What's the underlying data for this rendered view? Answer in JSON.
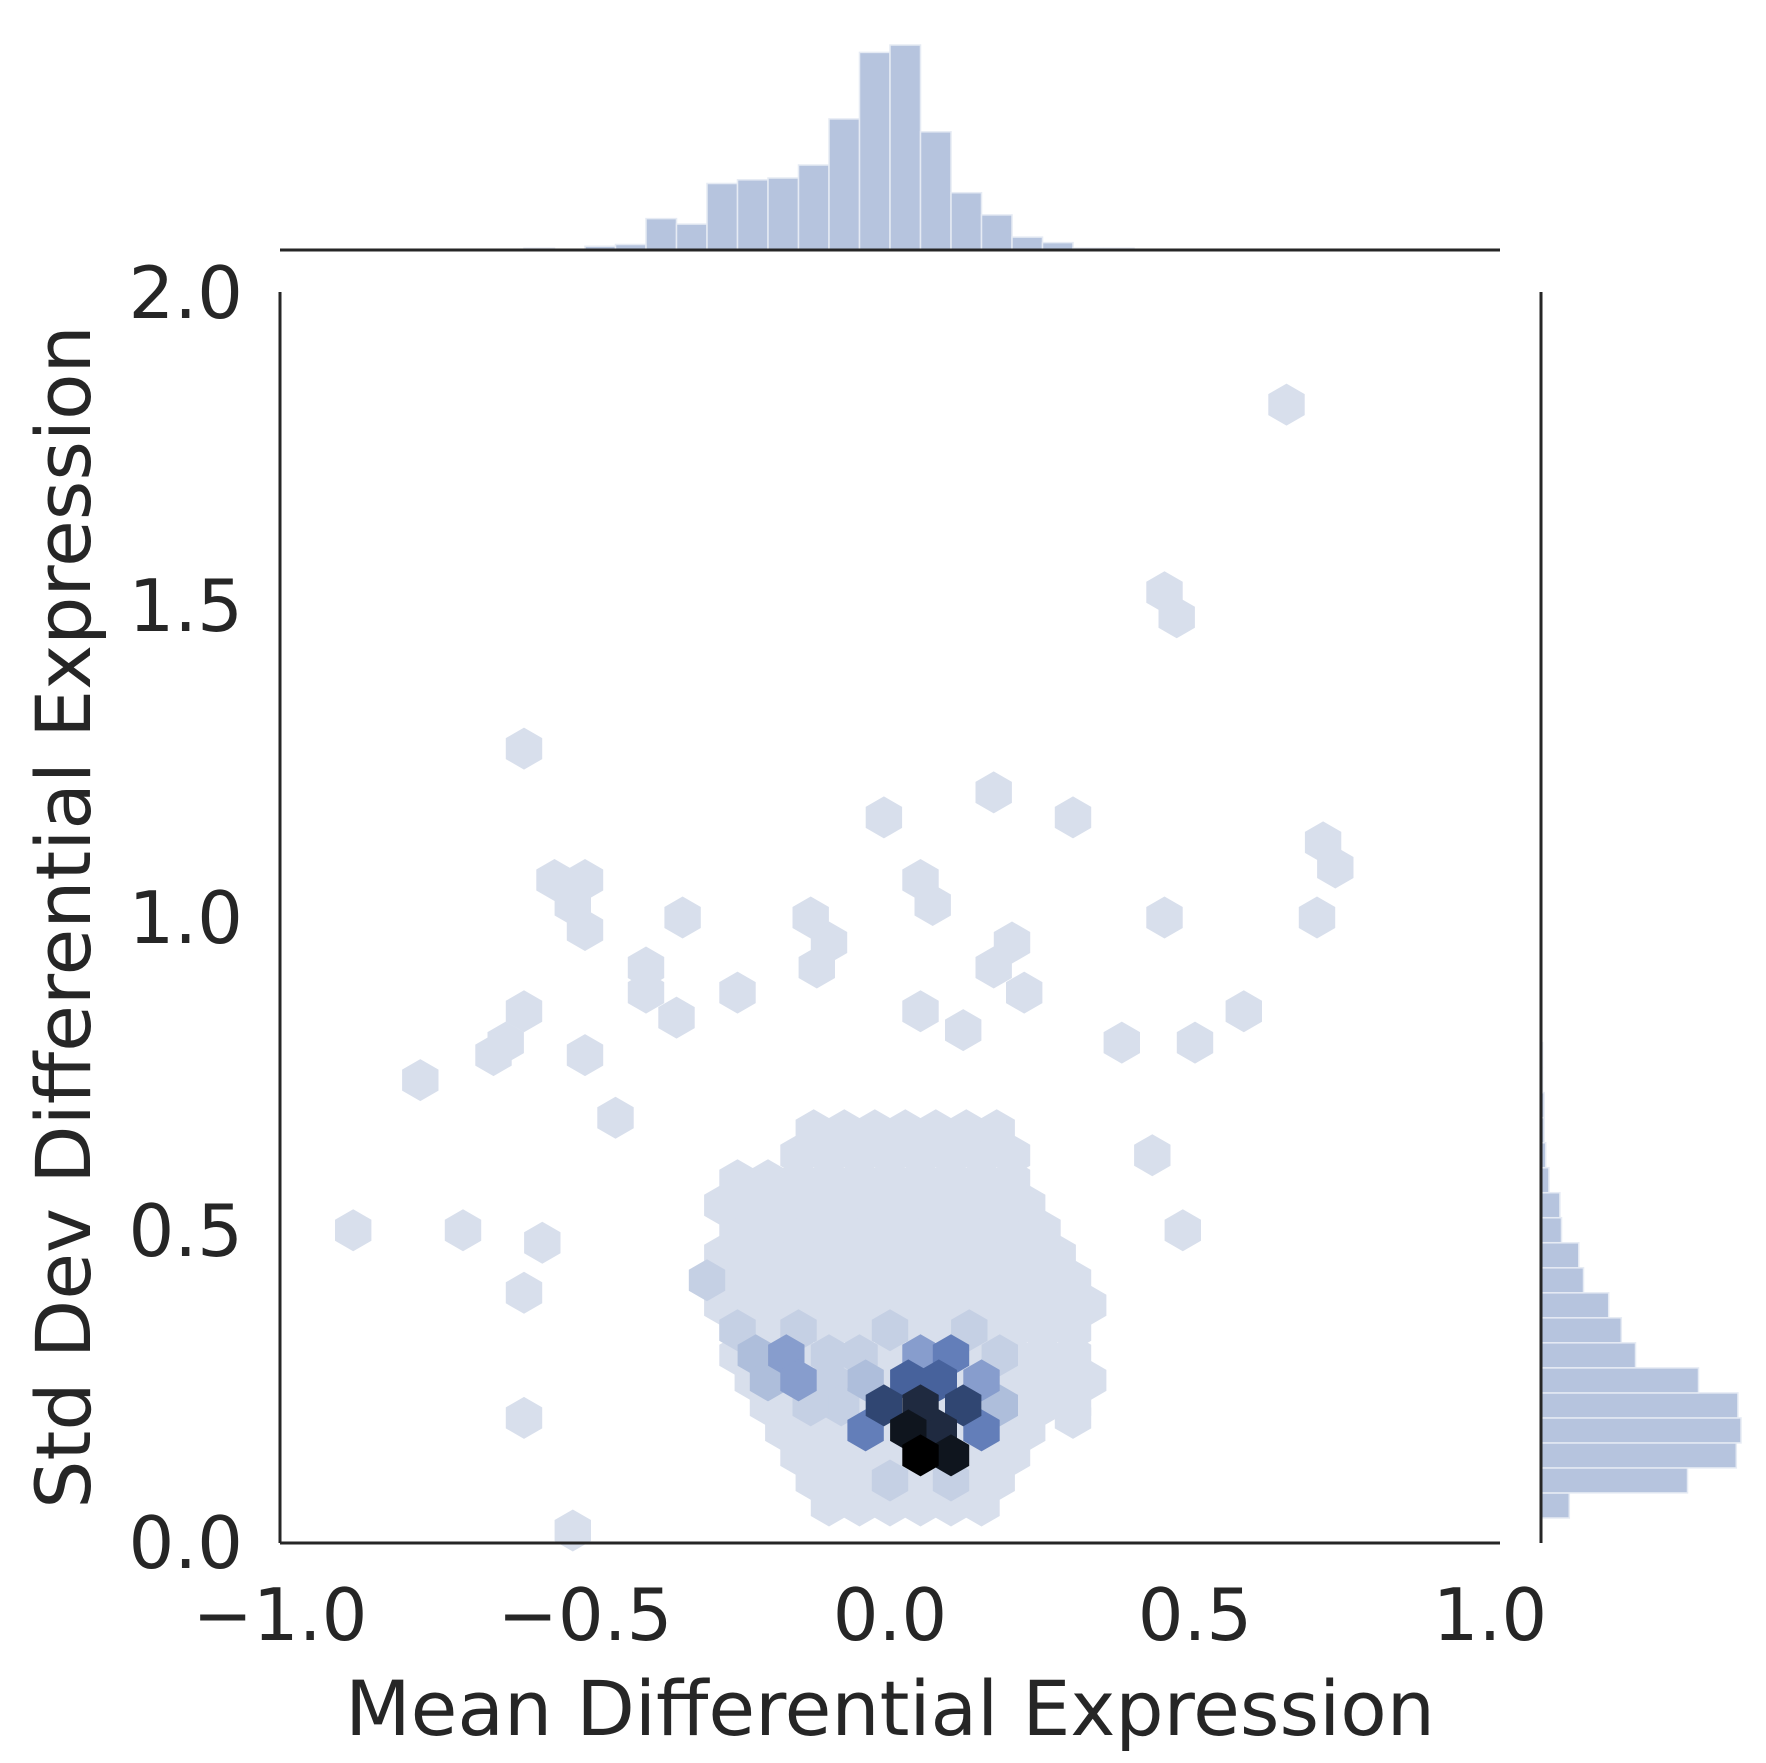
{
  "chart_data": {
    "type": "hexbin",
    "xlabel": "Mean Differential Expression",
    "ylabel": "Std Dev Differential Expression",
    "xlim": [
      -1.0,
      1.0
    ],
    "ylim": [
      0.0,
      2.0
    ],
    "x_ticks": [
      "−1.0",
      "−0.5",
      "0.0",
      "0.5",
      "1.0"
    ],
    "x_tick_values": [
      -1.0,
      -0.5,
      0.0,
      0.5,
      1.0
    ],
    "y_ticks": [
      "0.0",
      "0.5",
      "1.0",
      "1.5",
      "2.0"
    ],
    "y_tick_values": [
      0.0,
      0.5,
      1.0,
      1.5,
      2.0
    ],
    "grid": false,
    "colors": {
      "hex_low": "#d8dfec",
      "hex_high": "#000000",
      "marginal_bar": "#b6c4de",
      "axis": "#262626"
    },
    "hex_cells": [
      [
        0.05,
        0.14,
        10
      ],
      [
        0.1,
        0.14,
        9
      ],
      [
        0.03,
        0.18,
        9
      ],
      [
        0.08,
        0.18,
        8
      ],
      [
        0.05,
        0.22,
        8
      ],
      [
        0.12,
        0.22,
        7
      ],
      [
        -0.01,
        0.22,
        7
      ],
      [
        0.08,
        0.26,
        6
      ],
      [
        0.03,
        0.26,
        6
      ],
      [
        -0.04,
        0.18,
        5
      ],
      [
        0.15,
        0.18,
        5
      ],
      [
        0.1,
        0.3,
        5
      ],
      [
        0.05,
        0.3,
        4
      ],
      [
        -0.17,
        0.3,
        4
      ],
      [
        -0.15,
        0.26,
        4
      ],
      [
        0.15,
        0.26,
        4
      ],
      [
        0.18,
        0.22,
        3
      ],
      [
        -0.04,
        0.26,
        3
      ],
      [
        -0.22,
        0.3,
        3
      ],
      [
        -0.2,
        0.26,
        3
      ],
      [
        -0.1,
        0.26,
        2
      ],
      [
        -0.08,
        0.22,
        2
      ],
      [
        -0.13,
        0.22,
        2
      ],
      [
        0.1,
        0.1,
        2
      ],
      [
        0.0,
        0.1,
        2
      ],
      [
        -0.3,
        0.42,
        2
      ],
      [
        -0.05,
        0.3,
        2
      ],
      [
        0.0,
        0.34,
        2
      ],
      [
        0.13,
        0.34,
        2
      ],
      [
        0.18,
        0.3,
        2
      ],
      [
        -0.25,
        0.34,
        2
      ],
      [
        -0.15,
        0.34,
        2
      ],
      [
        -0.1,
        0.3,
        2
      ]
    ],
    "hex_outliers": [
      [
        0.65,
        1.82
      ],
      [
        0.45,
        1.52
      ],
      [
        0.47,
        1.48
      ],
      [
        -0.6,
        1.27
      ],
      [
        0.17,
        1.2
      ],
      [
        0.3,
        1.16
      ],
      [
        -0.01,
        1.16
      ],
      [
        0.71,
        1.12
      ],
      [
        0.73,
        1.08
      ],
      [
        -0.55,
        1.06
      ],
      [
        -0.5,
        1.06
      ],
      [
        0.05,
        1.06
      ],
      [
        -0.52,
        1.02
      ],
      [
        -0.34,
        1.0
      ],
      [
        -0.13,
        1.0
      ],
      [
        0.07,
        1.02
      ],
      [
        0.45,
        1.0
      ],
      [
        0.7,
        1.0
      ],
      [
        -0.5,
        0.98
      ],
      [
        -0.1,
        0.96
      ],
      [
        0.2,
        0.96
      ],
      [
        -0.12,
        0.92
      ],
      [
        -0.4,
        0.92
      ],
      [
        0.17,
        0.92
      ],
      [
        -0.25,
        0.88
      ],
      [
        0.22,
        0.88
      ],
      [
        0.58,
        0.85
      ],
      [
        -0.6,
        0.85
      ],
      [
        -0.4,
        0.88
      ],
      [
        -0.35,
        0.84
      ],
      [
        0.05,
        0.85
      ],
      [
        0.12,
        0.82
      ],
      [
        -0.63,
        0.8
      ],
      [
        -0.65,
        0.78
      ],
      [
        -0.77,
        0.74
      ],
      [
        -0.5,
        0.78
      ],
      [
        0.38,
        0.8
      ],
      [
        0.5,
        0.8
      ],
      [
        -0.45,
        0.68
      ],
      [
        -0.57,
        0.48
      ],
      [
        -0.88,
        0.5
      ],
      [
        -0.7,
        0.5
      ],
      [
        -0.6,
        0.4
      ],
      [
        -0.6,
        0.2
      ],
      [
        -0.52,
        0.02
      ],
      [
        0.3,
        0.2
      ],
      [
        0.43,
        0.62
      ],
      [
        0.48,
        0.5
      ]
    ],
    "marginal_x": {
      "bin_edges_start": -0.6,
      "bin_width": 0.05,
      "counts": [
        1,
        0,
        2,
        3,
        17,
        14,
        36,
        38,
        39,
        46,
        71,
        107,
        111,
        64,
        31,
        19,
        7,
        4,
        1,
        1,
        0
      ]
    },
    "marginal_y": {
      "bin_edges_start": 0.04,
      "bin_width": 0.04,
      "counts": [
        18,
        93,
        124,
        127,
        125,
        100,
        60,
        51,
        43,
        27,
        24,
        13,
        12,
        5,
        3,
        2,
        2,
        1,
        1
      ],
      "max_count": 127
    }
  }
}
